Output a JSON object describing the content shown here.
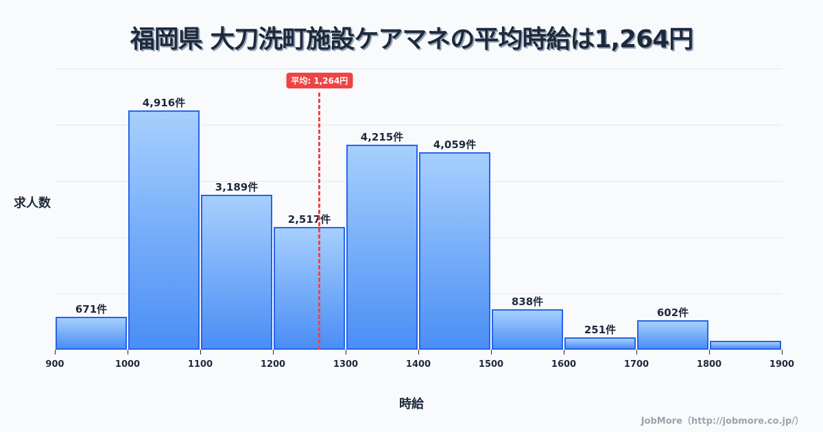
{
  "title": "福岡県 大刀洗町施設ケアマネの平均時給は1,264円",
  "axes": {
    "ylabel": "求人数",
    "xlabel": "時給"
  },
  "average": {
    "label": "平均: 1,264円",
    "value": 1264
  },
  "credit": "JobMore（http://jobmore.co.jp/）",
  "colors": {
    "bar_top": "#a6cffd",
    "bar_bottom": "#4a8ef5",
    "bar_border": "#2563eb",
    "average_line": "#ef4444",
    "text": "#1e293b"
  },
  "chart_data": {
    "type": "bar",
    "title": "福岡県 大刀洗町施設ケアマネの平均時給は1,264円",
    "xlabel": "時給",
    "ylabel": "求人数",
    "bins": [
      [
        900,
        1000
      ],
      [
        1000,
        1100
      ],
      [
        1100,
        1200
      ],
      [
        1200,
        1300
      ],
      [
        1300,
        1400
      ],
      [
        1400,
        1500
      ],
      [
        1500,
        1600
      ],
      [
        1600,
        1700
      ],
      [
        1700,
        1800
      ],
      [
        1800,
        1900
      ]
    ],
    "categories": [
      "900-1000",
      "1000-1100",
      "1100-1200",
      "1200-1300",
      "1300-1400",
      "1400-1500",
      "1500-1600",
      "1600-1700",
      "1700-1800",
      "1800-1900"
    ],
    "values": [
      671,
      4916,
      3189,
      2517,
      4215,
      4059,
      838,
      251,
      602,
      180
    ],
    "labels": [
      "671件",
      "4,916件",
      "3,189件",
      "2,517件",
      "4,215件",
      "4,059件",
      "838件",
      "251件",
      "602件",
      ""
    ],
    "x_ticks": [
      "900",
      "1000",
      "1100",
      "1200",
      "1300",
      "1400",
      "1500",
      "1600",
      "1700",
      "1800",
      "1900"
    ],
    "xlim": [
      900,
      1900
    ],
    "grid": true,
    "annotations": [
      {
        "type": "vline",
        "x": 1264,
        "label": "平均: 1,264円",
        "color": "#ef4444",
        "style": "dashed"
      }
    ]
  }
}
